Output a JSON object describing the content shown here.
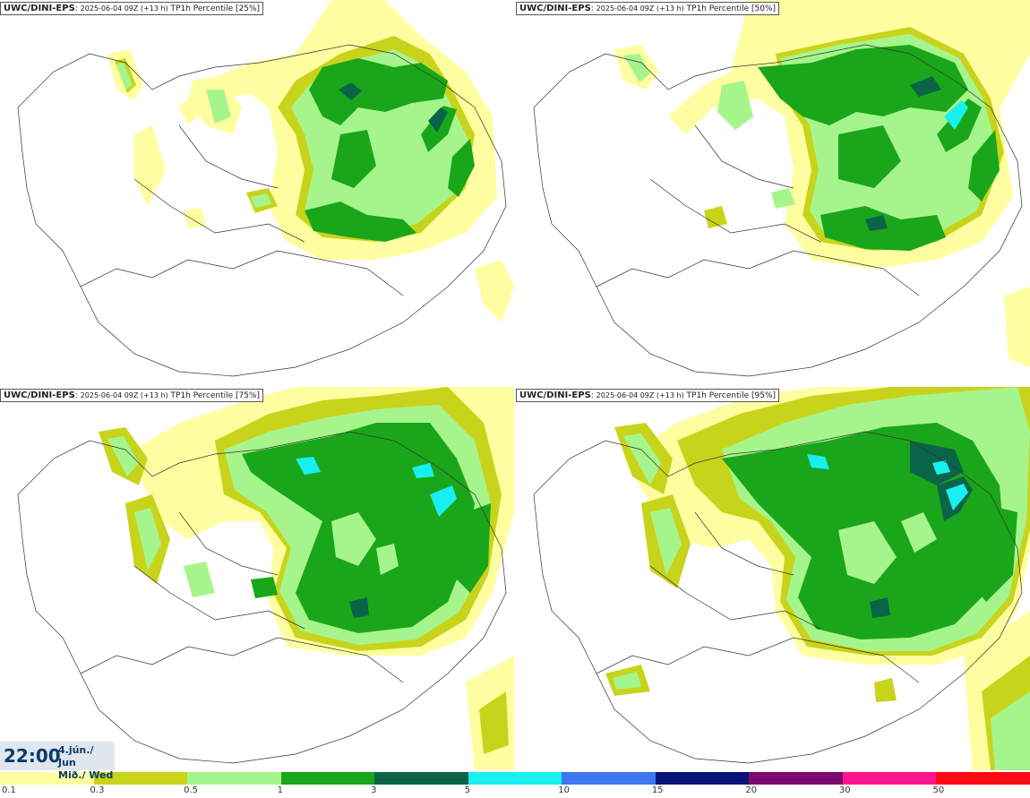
{
  "panels": [
    {
      "model": "UWC/DINI-EPS",
      "run": "2025-06-04 09Z (+13 h)",
      "field": "TP1h Percentile [25%]"
    },
    {
      "model": "UWC/DINI-EPS",
      "run": "2025-06-04 09Z (+13 h)",
      "field": "TP1h Percentile [50%]"
    },
    {
      "model": "UWC/DINI-EPS",
      "run": "2025-06-04 09Z (+13 h)",
      "field": "TP1h Percentile [75%]"
    },
    {
      "model": "UWC/DINI-EPS",
      "run": "2025-06-04 09Z (+13 h)",
      "field": "TP1h Percentile [95%]"
    }
  ],
  "valid_time": {
    "time": "22:00",
    "date_line1": "4.jún./ Jun",
    "date_line2": "Mið./ Wed"
  },
  "legend": {
    "colors": [
      "#fefea0",
      "#c8d41c",
      "#a6f58c",
      "#1aa61a",
      "#0a6448",
      "#18f0f0",
      "#3c78f0",
      "#0a1478",
      "#7a0a6e",
      "#ff1490",
      "#ff0a14"
    ],
    "ticks": [
      "0.1",
      "0.3",
      "0.5",
      "1",
      "3",
      "5",
      "10",
      "15",
      "20",
      "30",
      "50"
    ]
  }
}
